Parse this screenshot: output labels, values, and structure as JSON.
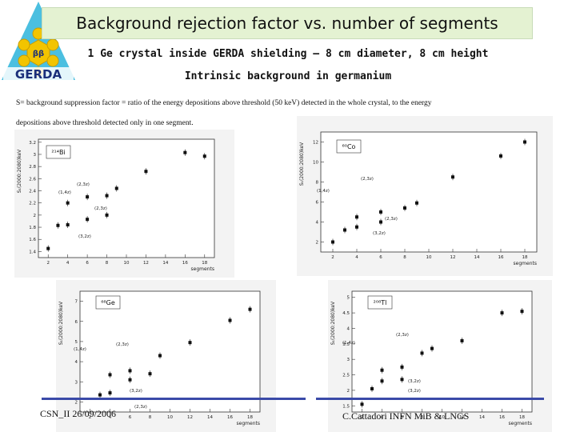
{
  "header": {
    "title": "Background rejection factor vs. number of segments",
    "subtitle1": "1 Ge crystal inside GERDA shielding – 8 cm diameter, 8 cm height",
    "subtitle2": "Intrinsic background in germanium",
    "note_line1": "S= background suppression factor = ratio of the energy depositions above threshold (50 keV) detected in the whole crystal, to the energy",
    "note_line2": "depositions above threshold detected only in one segment."
  },
  "logo": {
    "text": "GERDA",
    "symbol": "ββ",
    "colors": {
      "triangle": "#4bbfe0",
      "hexagon": "#f2c400",
      "text": "#1a2f7a"
    }
  },
  "footer": {
    "left": "CSN_II 26/09/2006",
    "right": "C.Cattadori INFN MiB & LNGS",
    "line_color": "#3a4aa8"
  },
  "chart_data": [
    {
      "type": "scatter",
      "legend": "²¹⁴Bi",
      "xlabel": "segments",
      "ylabel": "S₁(2000:2080)keV",
      "xlim": [
        1,
        19
      ],
      "ylim": [
        1.3,
        3.25
      ],
      "xticks": [
        2,
        4,
        6,
        8,
        10,
        12,
        14,
        16,
        18
      ],
      "yticks": [
        1.4,
        1.6,
        1.8,
        2.0,
        2.2,
        2.4,
        2.6,
        2.8,
        3.0,
        3.2
      ],
      "points": [
        {
          "x": 2,
          "y": 1.45
        },
        {
          "x": 3,
          "y": 1.83
        },
        {
          "x": 4,
          "y": 1.84
        },
        {
          "x": 4,
          "y": 2.2
        },
        {
          "x": 6,
          "y": 1.93
        },
        {
          "x": 6,
          "y": 2.3
        },
        {
          "x": 8,
          "y": 2.0
        },
        {
          "x": 8,
          "y": 2.32
        },
        {
          "x": 9,
          "y": 2.44
        },
        {
          "x": 12,
          "y": 2.72
        },
        {
          "x": 16,
          "y": 3.03
        },
        {
          "x": 18,
          "y": 2.97
        }
      ],
      "annotations": [
        "(1,4z)",
        "(2,3z)",
        "(3,2z)",
        "(2,3z)"
      ]
    },
    {
      "type": "scatter",
      "legend": "⁶⁰Co",
      "xlabel": "segments",
      "ylabel": "S₁(2000:2080)keV",
      "xlim": [
        1,
        19
      ],
      "ylim": [
        1,
        13
      ],
      "xticks": [
        2,
        4,
        6,
        8,
        10,
        12,
        14,
        16,
        18
      ],
      "yticks": [
        2,
        4,
        6,
        8,
        10,
        12
      ],
      "points": [
        {
          "x": 2,
          "y": 2.0
        },
        {
          "x": 3,
          "y": 3.2
        },
        {
          "x": 4,
          "y": 3.5
        },
        {
          "x": 4,
          "y": 4.5
        },
        {
          "x": 6,
          "y": 4.0
        },
        {
          "x": 6,
          "y": 5.0
        },
        {
          "x": 8,
          "y": 5.4
        },
        {
          "x": 9,
          "y": 5.9
        },
        {
          "x": 12,
          "y": 8.5
        },
        {
          "x": 16,
          "y": 10.6
        },
        {
          "x": 18,
          "y": 12.0
        }
      ],
      "annotations": [
        "(1,4z)",
        "(2,3z)",
        "(3,2z)",
        "(2,3z)"
      ]
    },
    {
      "type": "scatter",
      "legend": "⁶⁸Ge",
      "xlabel": "segments",
      "ylabel": "S₁(2000:2080)keV",
      "xlim": [
        1,
        19
      ],
      "ylim": [
        1.5,
        7.5
      ],
      "xticks": [
        2,
        4,
        6,
        8,
        10,
        12,
        14,
        16,
        18
      ],
      "yticks": [
        2,
        3,
        4,
        5,
        6,
        7
      ],
      "points": [
        {
          "x": 3,
          "y": 2.35
        },
        {
          "x": 4,
          "y": 2.45
        },
        {
          "x": 4,
          "y": 3.35
        },
        {
          "x": 6,
          "y": 3.1
        },
        {
          "x": 6,
          "y": 3.55
        },
        {
          "x": 8,
          "y": 3.4
        },
        {
          "x": 9,
          "y": 4.3
        },
        {
          "x": 12,
          "y": 4.95
        },
        {
          "x": 16,
          "y": 6.05
        },
        {
          "x": 18,
          "y": 6.6
        }
      ],
      "annotations": [
        "(1,4z)",
        "(2,3z)",
        "(3,2z)",
        "(2,3z)"
      ]
    },
    {
      "type": "scatter",
      "legend": "²⁰⁸Tl",
      "xlabel": "segments",
      "ylabel": "S₁(2000:2080)keV",
      "xlim": [
        1,
        19
      ],
      "ylim": [
        1.3,
        5.2
      ],
      "xticks": [
        2,
        4,
        6,
        8,
        10,
        12,
        14,
        16,
        18
      ],
      "yticks": [
        1.5,
        2,
        2.5,
        3,
        3.5,
        4,
        4.5,
        5
      ],
      "points": [
        {
          "x": 2,
          "y": 1.55
        },
        {
          "x": 3,
          "y": 2.05
        },
        {
          "x": 4,
          "y": 2.3
        },
        {
          "x": 4,
          "y": 2.65
        },
        {
          "x": 6,
          "y": 2.35
        },
        {
          "x": 6,
          "y": 2.75
        },
        {
          "x": 8,
          "y": 3.2
        },
        {
          "x": 9,
          "y": 3.35
        },
        {
          "x": 12,
          "y": 3.6
        },
        {
          "x": 16,
          "y": 4.5
        },
        {
          "x": 18,
          "y": 4.55
        }
      ],
      "annotations": [
        "(1,4z)",
        "(2,3z)",
        "(3,2z)",
        "(3,2z)"
      ]
    }
  ]
}
